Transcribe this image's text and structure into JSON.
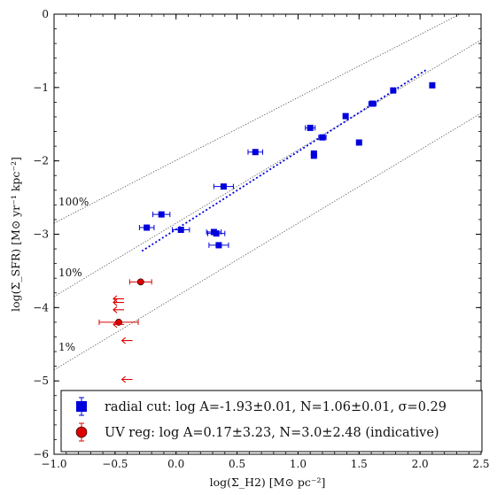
{
  "chart_data": {
    "type": "scatter",
    "xlabel": "log(Σ_H2) [M⊙ pc⁻²]",
    "ylabel": "log(Σ_SFR) [M⊙ yr⁻¹ kpc⁻²]",
    "xlim": [
      -1.0,
      2.5
    ],
    "ylim": [
      -6,
      0
    ],
    "xticks": [
      "−1.0",
      "−0.5",
      "0.0",
      "0.5",
      "1.0",
      "1.5",
      "2.0",
      "2.5"
    ],
    "yticks": [
      "0",
      "−1",
      "−2",
      "−3",
      "−4",
      "−5",
      "−6"
    ],
    "grid": false,
    "legend_position": "bottom",
    "series": [
      {
        "name": "radial cut: log A=-1.93±0.01, N=1.06±0.01, σ=0.29",
        "marker": "square",
        "color": "#0000dd",
        "points": [
          {
            "x": 2.1,
            "y": -0.97,
            "xerr": 0.0
          },
          {
            "x": 1.78,
            "y": -1.04,
            "xerr": 0.0
          },
          {
            "x": 1.61,
            "y": -1.22,
            "xerr": 0.03
          },
          {
            "x": 1.39,
            "y": -1.39,
            "xerr": 0.0
          },
          {
            "x": 1.5,
            "y": -1.75,
            "xerr": 0.0
          },
          {
            "x": 1.1,
            "y": -1.55,
            "xerr": 0.04
          },
          {
            "x": 1.2,
            "y": -1.68,
            "xerr": 0.03
          },
          {
            "x": 1.13,
            "y": -1.9,
            "xerr": 0.0
          },
          {
            "x": 1.13,
            "y": -1.93,
            "xerr": 0.0
          },
          {
            "x": 0.65,
            "y": -1.88,
            "xerr": 0.06
          },
          {
            "x": 0.39,
            "y": -2.35,
            "xerr": 0.08
          },
          {
            "x": -0.12,
            "y": -2.73,
            "xerr": 0.07
          },
          {
            "x": -0.24,
            "y": -2.91,
            "xerr": 0.06
          },
          {
            "x": 0.04,
            "y": -2.94,
            "xerr": 0.07
          },
          {
            "x": 0.31,
            "y": -2.97,
            "xerr": 0.06
          },
          {
            "x": 0.33,
            "y": -2.99,
            "xerr": 0.07
          },
          {
            "x": 0.35,
            "y": -3.15,
            "xerr": 0.08
          }
        ]
      },
      {
        "name": "UV reg: log A=0.17±3.23, N=3.0±2.48 (indicative)",
        "marker": "circle",
        "color": "#dd0000",
        "points": [
          {
            "x": -0.29,
            "y": -3.65,
            "xerr": 0.09
          },
          {
            "x": -0.47,
            "y": -4.2,
            "xerr": 0.16
          }
        ]
      }
    ],
    "upper_limits": {
      "color": "#dd0000",
      "points": [
        {
          "x": -0.47,
          "y": -3.88
        },
        {
          "x": -0.47,
          "y": -3.93
        },
        {
          "x": -0.47,
          "y": -4.03
        },
        {
          "x": -0.47,
          "y": -4.23
        },
        {
          "x": -0.4,
          "y": -4.45
        },
        {
          "x": -0.4,
          "y": -4.98
        }
      ]
    },
    "fit_line": {
      "x": [
        -0.28,
        2.05
      ],
      "y": [
        -3.23,
        -0.76
      ],
      "color": "#0000dd"
    },
    "efficiency_lines": [
      {
        "label": "100%",
        "x": [
          -1.0,
          2.5
        ],
        "y": [
          -2.85,
          0.15
        ]
      },
      {
        "label": "10%",
        "x": [
          -1.0,
          2.5
        ],
        "y": [
          -3.85,
          -0.35
        ]
      },
      {
        "label": "1%",
        "x": [
          -1.0,
          2.5
        ],
        "y": [
          -4.85,
          -1.35
        ]
      }
    ]
  }
}
